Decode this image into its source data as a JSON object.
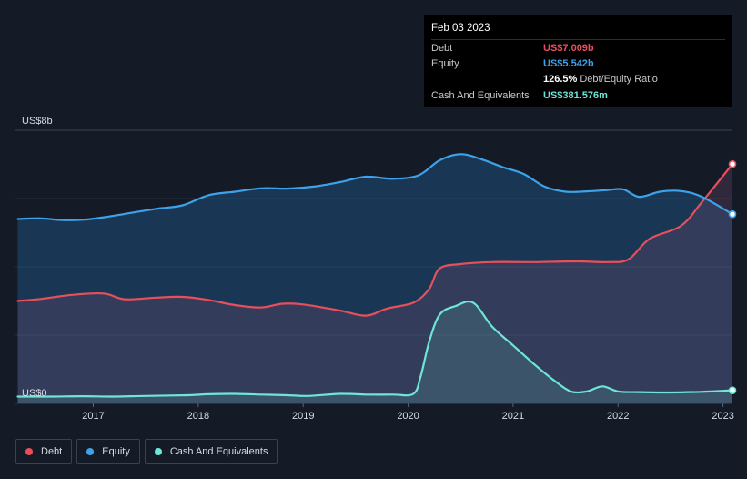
{
  "tooltip": {
    "date": "Feb 03 2023",
    "rows": [
      {
        "label": "Debt",
        "value": "US$7.009b",
        "color": "#e84f5c"
      },
      {
        "label": "Equity",
        "value": "US$5.542b",
        "color": "#3ea2ea"
      },
      {
        "label": "",
        "value": "126.5%",
        "unit": "Debt/Equity Ratio",
        "color": "#ffffff"
      },
      {
        "label": "Cash And Equivalents",
        "value": "US$381.576m",
        "color": "#6ee6d6"
      }
    ]
  },
  "legend": [
    {
      "label": "Debt",
      "color": "#e84f5c"
    },
    {
      "label": "Equity",
      "color": "#3ea2ea"
    },
    {
      "label": "Cash And Equivalents",
      "color": "#6ee6d6"
    }
  ],
  "chart_data": {
    "type": "area",
    "y_top_label": "US$8b",
    "y_bottom_label": "US$0",
    "ylim": [
      0,
      8
    ],
    "xlim": [
      2016.25,
      2023.09
    ],
    "x_ticks": [
      "2017",
      "2018",
      "2019",
      "2020",
      "2021",
      "2022",
      "2023"
    ],
    "x_tick_values": [
      2017,
      2018,
      2019,
      2020,
      2021,
      2022,
      2023
    ],
    "grid": true,
    "legend_position": "bottom-left",
    "series": [
      {
        "name": "Debt",
        "color": "#e84f5c",
        "x": [
          2016.28,
          2016.5,
          2016.8,
          2017.1,
          2017.3,
          2017.6,
          2017.85,
          2018.1,
          2018.35,
          2018.6,
          2018.8,
          2019.0,
          2019.35,
          2019.6,
          2019.8,
          2020.05,
          2020.2,
          2020.3,
          2020.5,
          2020.8,
          2021.2,
          2021.6,
          2021.9,
          2022.1,
          2022.3,
          2022.6,
          2022.8,
          2023.09
        ],
        "values": [
          3.0,
          3.06,
          3.18,
          3.22,
          3.05,
          3.1,
          3.12,
          3.03,
          2.88,
          2.81,
          2.92,
          2.9,
          2.72,
          2.57,
          2.78,
          2.95,
          3.35,
          3.95,
          4.08,
          4.14,
          4.14,
          4.16,
          4.14,
          4.22,
          4.82,
          5.2,
          5.9,
          7.009
        ]
      },
      {
        "name": "Equity",
        "color": "#3ea2ea",
        "x": [
          2016.28,
          2016.5,
          2016.7,
          2016.9,
          2017.1,
          2017.3,
          2017.6,
          2017.85,
          2018.1,
          2018.35,
          2018.6,
          2018.85,
          2019.1,
          2019.35,
          2019.6,
          2019.85,
          2020.1,
          2020.3,
          2020.5,
          2020.7,
          2020.9,
          2021.1,
          2021.3,
          2021.5,
          2021.7,
          2021.9,
          2022.05,
          2022.2,
          2022.4,
          2022.6,
          2022.8,
          2023.09
        ],
        "values": [
          5.4,
          5.42,
          5.37,
          5.38,
          5.45,
          5.55,
          5.7,
          5.8,
          6.1,
          6.2,
          6.3,
          6.29,
          6.35,
          6.48,
          6.64,
          6.58,
          6.68,
          7.12,
          7.3,
          7.15,
          6.92,
          6.72,
          6.35,
          6.2,
          6.21,
          6.25,
          6.27,
          6.05,
          6.2,
          6.22,
          6.05,
          5.542
        ]
      },
      {
        "name": "Cash And Equivalents",
        "color": "#6ee6d6",
        "x": [
          2016.28,
          2016.6,
          2016.9,
          2017.2,
          2017.5,
          2017.9,
          2018.1,
          2018.35,
          2018.6,
          2018.85,
          2019.05,
          2019.35,
          2019.6,
          2019.85,
          2020.05,
          2020.12,
          2020.2,
          2020.3,
          2020.45,
          2020.62,
          2020.8,
          2021.0,
          2021.2,
          2021.4,
          2021.55,
          2021.7,
          2021.85,
          2022.0,
          2022.2,
          2022.5,
          2022.8,
          2023.09
        ],
        "values": [
          0.2,
          0.2,
          0.21,
          0.2,
          0.22,
          0.24,
          0.27,
          0.28,
          0.26,
          0.24,
          0.22,
          0.28,
          0.26,
          0.26,
          0.28,
          0.8,
          1.8,
          2.6,
          2.85,
          2.95,
          2.25,
          1.7,
          1.15,
          0.65,
          0.35,
          0.35,
          0.5,
          0.35,
          0.33,
          0.32,
          0.34,
          0.381576
        ]
      }
    ]
  }
}
